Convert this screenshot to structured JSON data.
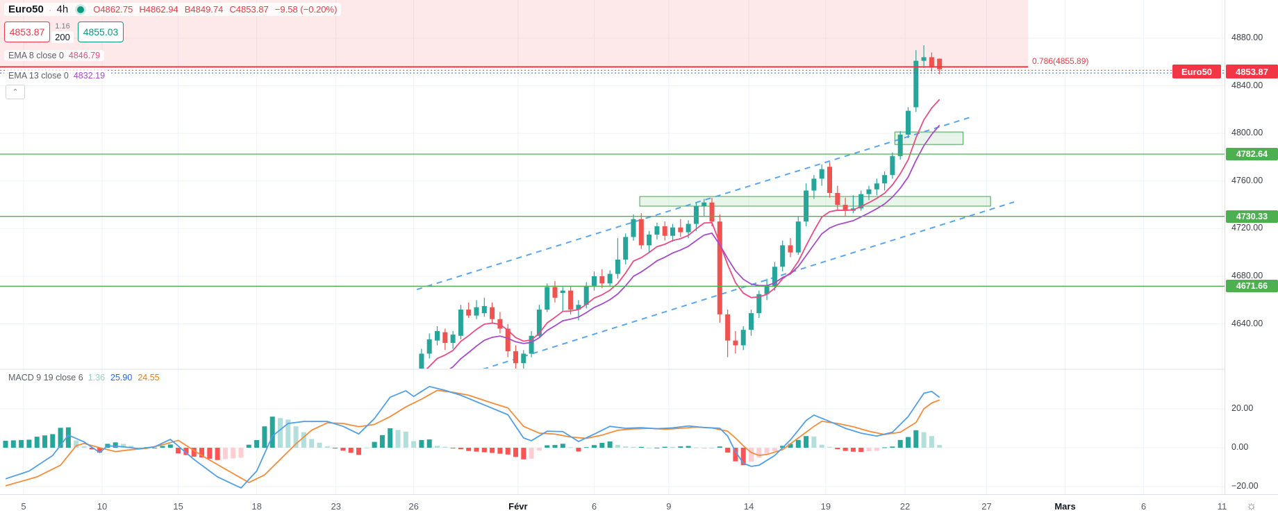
{
  "header": {
    "symbol": "Euro50",
    "separator": "·",
    "interval": "4h",
    "ohlc_tokens": [
      "O4862.75",
      "H4862.94",
      "B4849.74",
      "C4853.87"
    ],
    "change": "−9.58 (−0.20%)"
  },
  "trade_panel": {
    "sell": "4853.87",
    "spread": "1.16",
    "lot": "200",
    "buy": "4855.03"
  },
  "indicator_rows": [
    {
      "label": "EMA 8 close 0",
      "value": "4846.79"
    },
    {
      "label": "EMA 13 close 0",
      "value": "4832.19"
    }
  ],
  "macd_row": {
    "label": "MACD 9 19 close 6",
    "hist_value": "1.36",
    "macd_value": "25.90",
    "signal_value": "24.55"
  },
  "collapse_button": "⌃",
  "fib": {
    "label": "0.786(4855.89)",
    "price": 4855.89
  },
  "last_price": {
    "badge": "Euro50",
    "label": "4853.87",
    "price": 4853.87
  },
  "levels": [
    {
      "label": "4782.64",
      "price": 4782.64
    },
    {
      "label": "4730.33",
      "price": 4730.33
    },
    {
      "label": "4671.66",
      "price": 4671.66
    }
  ],
  "price_scale": {
    "labels": [
      "4880.00",
      "4840.00",
      "4800.00",
      "4760.00",
      "4720.00",
      "4680.00",
      "4640.00"
    ]
  },
  "macd_scale": {
    "labels": [
      "20.00",
      "0.00",
      "−20.00"
    ]
  },
  "time_scale": {
    "labels": [
      {
        "text": "5",
        "bar": 2.3
      },
      {
        "text": "10",
        "bar": 12.3
      },
      {
        "text": "15",
        "bar": 22
      },
      {
        "text": "18",
        "bar": 32
      },
      {
        "text": "23",
        "bar": 42.1
      },
      {
        "text": "26",
        "bar": 52
      },
      {
        "text": "Févr",
        "bar": 65.3,
        "month": true
      },
      {
        "text": "6",
        "bar": 75
      },
      {
        "text": "9",
        "bar": 84.5
      },
      {
        "text": "14",
        "bar": 94.7
      },
      {
        "text": "19",
        "bar": 104.5
      },
      {
        "text": "22",
        "bar": 114.6
      },
      {
        "text": "27",
        "bar": 125
      },
      {
        "text": "Mars",
        "bar": 135,
        "month": true
      },
      {
        "text": "6",
        "bar": 145
      },
      {
        "text": "11",
        "bar": 155
      }
    ]
  },
  "timezone_icon": "☼",
  "colors": {
    "up": "#26a69a",
    "down": "#ef5350",
    "ema8": "#ec4a82",
    "ema13": "#a64ac9",
    "macd_line": "#4f9fe8",
    "signal_line": "#f58c3a",
    "hist_up": "#26a69a",
    "hist_up_fade": "#b2dfdb",
    "hist_down": "#ff5252",
    "hist_down_fade": "#ffcdd2",
    "level_green": "#4caf50",
    "accent_red": "#f23645",
    "channel_blue": "#58a6f2",
    "zone_pink": "rgba(242,84,91,0.13)",
    "box_green_fill": "rgba(76,175,80,0.12)",
    "box_green_border": "#4c9e4f",
    "grid": "#eef2f9",
    "axis_border": "#dcdfe6",
    "dotted_blue": "#2962ff"
  },
  "chart_data": {
    "type": "candlestick",
    "title": "Euro50 4h with EMA(8), EMA(13), fib level, supply/demand boxes, trend channel and MACD(9,19,6)",
    "first_bar": 53,
    "total_bars": 120,
    "price_axis_range_visible": [
      4600,
      4890
    ],
    "price_tick_values": [
      4880,
      4840,
      4800,
      4760,
      4720,
      4680,
      4640
    ],
    "macd_tick_values": [
      20,
      0,
      -20
    ],
    "candles": [
      [
        4601,
        4619,
        4598,
        4615
      ],
      [
        4615,
        4632,
        4611,
        4627
      ],
      [
        4626,
        4638,
        4622,
        4634
      ],
      [
        4633,
        4636,
        4618,
        4624
      ],
      [
        4624,
        4634,
        4619,
        4631
      ],
      [
        4630,
        4656,
        4627,
        4652
      ],
      [
        4652,
        4658,
        4645,
        4647
      ],
      [
        4647,
        4660,
        4644,
        4654
      ],
      [
        4649,
        4662,
        4646,
        4655
      ],
      [
        4654,
        4658,
        4640,
        4644
      ],
      [
        4644,
        4650,
        4632,
        4636
      ],
      [
        4636,
        4640,
        4612,
        4617
      ],
      [
        4617,
        4622,
        4600,
        4607
      ],
      [
        4607,
        4618,
        4602,
        4615
      ],
      [
        4615,
        4634,
        4612,
        4630
      ],
      [
        4630,
        4656,
        4628,
        4652
      ],
      [
        4652,
        4674,
        4650,
        4671
      ],
      [
        4671,
        4676,
        4658,
        4662
      ],
      [
        4666,
        4671,
        4650,
        4668
      ],
      [
        4668,
        4672,
        4648,
        4652
      ],
      [
        4652,
        4660,
        4643,
        4656
      ],
      [
        4656,
        4675,
        4653,
        4672
      ],
      [
        4672,
        4684,
        4668,
        4680
      ],
      [
        4680,
        4686,
        4670,
        4674
      ],
      [
        4674,
        4685,
        4672,
        4682
      ],
      [
        4682,
        4712,
        4678,
        4694
      ],
      [
        4694,
        4716,
        4690,
        4713
      ],
      [
        4713,
        4732,
        4710,
        4728
      ],
      [
        4728,
        4733,
        4703,
        4706
      ],
      [
        4706,
        4718,
        4700,
        4715
      ],
      [
        4715,
        4725,
        4711,
        4722
      ],
      [
        4722,
        4726,
        4710,
        4714
      ],
      [
        4714,
        4724,
        4709,
        4721
      ],
      [
        4721,
        4728,
        4713,
        4717
      ],
      [
        4717,
        4727,
        4712,
        4724
      ],
      [
        4724,
        4742,
        4718,
        4739
      ],
      [
        4739,
        4745,
        4730,
        4742
      ],
      [
        4742,
        4746,
        4722,
        4726
      ],
      [
        4726,
        4732,
        4641,
        4648
      ],
      [
        4648,
        4652,
        4612,
        4626
      ],
      [
        4626,
        4634,
        4615,
        4622
      ],
      [
        4622,
        4638,
        4618,
        4635
      ],
      [
        4635,
        4652,
        4630,
        4649
      ],
      [
        4649,
        4668,
        4645,
        4665
      ],
      [
        4665,
        4678,
        4660,
        4672
      ],
      [
        4672,
        4692,
        4668,
        4688
      ],
      [
        4688,
        4710,
        4684,
        4706
      ],
      [
        4706,
        4712,
        4696,
        4700
      ],
      [
        4700,
        4730,
        4698,
        4726
      ],
      [
        4726,
        4758,
        4722,
        4752
      ],
      [
        4752,
        4765,
        4745,
        4762
      ],
      [
        4762,
        4774,
        4756,
        4770
      ],
      [
        4772,
        4776,
        4746,
        4750
      ],
      [
        4750,
        4756,
        4736,
        4740
      ],
      [
        4740,
        4746,
        4730,
        4735
      ],
      [
        4735,
        4748,
        4733,
        4737
      ],
      [
        4737,
        4752,
        4735,
        4749
      ],
      [
        4749,
        4756,
        4744,
        4753
      ],
      [
        4753,
        4762,
        4748,
        4758
      ],
      [
        4758,
        4768,
        4752,
        4765
      ],
      [
        4765,
        4784,
        4762,
        4781
      ],
      [
        4781,
        4802,
        4778,
        4799
      ],
      [
        4799,
        4822,
        4796,
        4819
      ],
      [
        4822,
        4870,
        4818,
        4861
      ],
      [
        4861,
        4874,
        4855,
        4864
      ],
      [
        4864,
        4868,
        4852,
        4856
      ],
      [
        4862.75,
        4862.94,
        4849.74,
        4853.87
      ]
    ],
    "ema_periods": [
      8,
      13
    ],
    "macd_keyframes": [
      [
        0,
        -16
      ],
      [
        3,
        -12
      ],
      [
        6,
        -4
      ],
      [
        8,
        6.5
      ],
      [
        10,
        3
      ],
      [
        12,
        -2.5
      ],
      [
        13,
        1
      ],
      [
        15,
        0.5
      ],
      [
        17,
        -0.5
      ],
      [
        19,
        0.5
      ],
      [
        21,
        4.3
      ],
      [
        24,
        -6
      ],
      [
        27,
        -15
      ],
      [
        30,
        -20.7
      ],
      [
        32,
        -12
      ],
      [
        34,
        6
      ],
      [
        36,
        12.5
      ],
      [
        38,
        13.5
      ],
      [
        41,
        13.5
      ],
      [
        43,
        11
      ],
      [
        45,
        7.1
      ],
      [
        47,
        15
      ],
      [
        49,
        26
      ],
      [
        51,
        29.3
      ],
      [
        52,
        26.4
      ],
      [
        54,
        31.5
      ],
      [
        56,
        29.5
      ],
      [
        58,
        27
      ],
      [
        61,
        22
      ],
      [
        64,
        17
      ],
      [
        66,
        5
      ],
      [
        67,
        3.6
      ],
      [
        69,
        8.5
      ],
      [
        71,
        8.3
      ],
      [
        73,
        3.2
      ],
      [
        75,
        7
      ],
      [
        77,
        11
      ],
      [
        79,
        10
      ],
      [
        81,
        10.3
      ],
      [
        83,
        9.8
      ],
      [
        85,
        10.2
      ],
      [
        87,
        11.2
      ],
      [
        89,
        10.4
      ],
      [
        91,
        10
      ],
      [
        92,
        6
      ],
      [
        93,
        -2
      ],
      [
        94,
        -8
      ],
      [
        95,
        -9.6
      ],
      [
        96,
        -9
      ],
      [
        98,
        -4
      ],
      [
        100,
        4
      ],
      [
        102,
        14
      ],
      [
        103,
        16.8
      ],
      [
        105,
        13.5
      ],
      [
        107,
        10
      ],
      [
        109,
        7.5
      ],
      [
        111,
        6
      ],
      [
        113,
        8
      ],
      [
        115,
        16
      ],
      [
        116,
        22
      ],
      [
        117,
        28
      ],
      [
        118,
        29
      ],
      [
        119,
        25.9
      ]
    ],
    "signal_keyframes": [
      [
        0,
        -19.6
      ],
      [
        4,
        -15
      ],
      [
        7,
        -9
      ],
      [
        9,
        1
      ],
      [
        10,
        2.2
      ],
      [
        12,
        0
      ],
      [
        14,
        -2
      ],
      [
        16,
        -1
      ],
      [
        18,
        -0.3
      ],
      [
        20,
        1.5
      ],
      [
        22,
        3.8
      ],
      [
        25,
        -4
      ],
      [
        28,
        -11
      ],
      [
        31,
        -17.9
      ],
      [
        33,
        -14
      ],
      [
        35,
        -6
      ],
      [
        37,
        2
      ],
      [
        39,
        9
      ],
      [
        41,
        12.8
      ],
      [
        43,
        12.5
      ],
      [
        45,
        10.8
      ],
      [
        47,
        12
      ],
      [
        49,
        16
      ],
      [
        51,
        21
      ],
      [
        53,
        25
      ],
      [
        55,
        29.5
      ],
      [
        57,
        28.5
      ],
      [
        59,
        27
      ],
      [
        62,
        23
      ],
      [
        64,
        20.5
      ],
      [
        66,
        11
      ],
      [
        68,
        7.5
      ],
      [
        70,
        7
      ],
      [
        72,
        5.5
      ],
      [
        74,
        4.8
      ],
      [
        76,
        6.5
      ],
      [
        78,
        9
      ],
      [
        80,
        9.7
      ],
      [
        82,
        10
      ],
      [
        84,
        9.5
      ],
      [
        86,
        10
      ],
      [
        88,
        10.6
      ],
      [
        90,
        10.2
      ],
      [
        92,
        8.5
      ],
      [
        93,
        5
      ],
      [
        94,
        1
      ],
      [
        95,
        -2.5
      ],
      [
        96,
        -3.9
      ],
      [
        97,
        -3.5
      ],
      [
        99,
        -1
      ],
      [
        101,
        5
      ],
      [
        103,
        11
      ],
      [
        104,
        13.6
      ],
      [
        106,
        12.5
      ],
      [
        108,
        10.8
      ],
      [
        110,
        8.5
      ],
      [
        112,
        6.8
      ],
      [
        114,
        8
      ],
      [
        116,
        13
      ],
      [
        117,
        20
      ],
      [
        118,
        23
      ],
      [
        119,
        24.55
      ]
    ],
    "boxes": [
      {
        "name": "demand-box",
        "bar1": 80.8,
        "bar2": 125.5,
        "p1": 4747.0,
        "p2": 4738.9
      },
      {
        "name": "supply-box",
        "bar1": 113.3,
        "bar2": 122.0,
        "p1": 4801.2,
        "p2": 4790.7
      }
    ],
    "channel": {
      "upper": {
        "bar1": 52.4,
        "p1": 4668.9,
        "bar2": 123.2,
        "p2": 4814.1
      },
      "lower": {
        "bar1": 60.8,
        "p1": 4601.9,
        "bar2": 128.5,
        "p2": 4742.4
      }
    },
    "pink_zone": {
      "price_bottom": 4855.89,
      "bar_right": 130.3
    },
    "dotted_lines": [
      {
        "price": 4853.0,
        "color": "red"
      },
      {
        "price": 4850.8,
        "color": "blue"
      }
    ]
  }
}
